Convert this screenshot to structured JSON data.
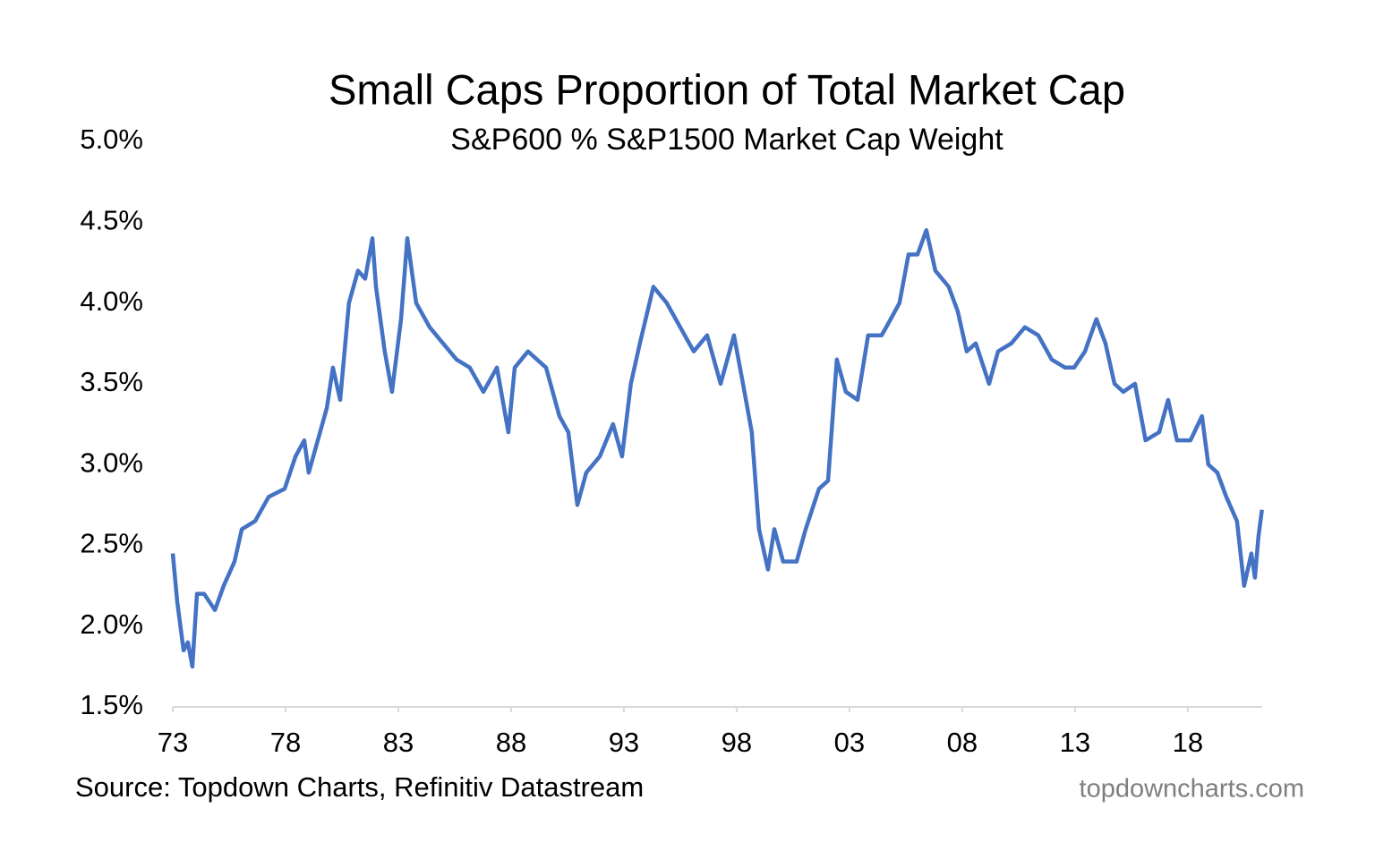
{
  "chart_data": {
    "type": "line",
    "title": "Small Caps Proportion of Total Market Cap",
    "subtitle": "S&P600 % S&P1500 Market Cap Weight",
    "source": "Source: Topdown Charts, Refinitiv Datastream",
    "watermark": "topdowncharts.com",
    "x": [
      1973.0,
      1973.2,
      1973.48,
      1973.67,
      1973.87,
      1974.07,
      1974.39,
      1974.87,
      1975.26,
      1975.74,
      1976.06,
      1976.65,
      1977.25,
      1977.96,
      1978.44,
      1978.83,
      1979.03,
      1979.43,
      1979.83,
      1980.1,
      1980.42,
      1980.81,
      1981.21,
      1981.53,
      1981.85,
      1982.01,
      1982.4,
      1982.72,
      1983.12,
      1983.4,
      1983.79,
      1984.39,
      1984.98,
      1985.58,
      1986.17,
      1986.77,
      1987.37,
      1987.88,
      1988.16,
      1988.75,
      1989.55,
      1990.14,
      1990.54,
      1990.94,
      1991.33,
      1991.93,
      1992.52,
      1992.92,
      1993.31,
      1993.71,
      1994.31,
      1994.9,
      1995.5,
      1996.1,
      1996.69,
      1997.29,
      1997.88,
      1998.28,
      1998.67,
      1998.99,
      1999.39,
      1999.67,
      2000.06,
      2000.66,
      2001.06,
      2001.65,
      2002.05,
      2002.44,
      2002.84,
      2003.36,
      2003.83,
      2004.43,
      2004.83,
      2005.22,
      2005.62,
      2006.02,
      2006.41,
      2006.81,
      2007.4,
      2007.8,
      2008.2,
      2008.6,
      2009.19,
      2009.59,
      2010.18,
      2010.78,
      2011.37,
      2011.97,
      2012.56,
      2012.96,
      2013.44,
      2013.95,
      2014.35,
      2014.75,
      2015.14,
      2015.66,
      2016.13,
      2016.73,
      2017.13,
      2017.52,
      2018.12,
      2018.63,
      2018.91,
      2019.31,
      2019.71,
      2020.18,
      2020.5,
      2020.82,
      2020.98,
      2021.13,
      2021.29
    ],
    "series": [
      {
        "name": "S&P600 % S&P1500",
        "color": "#4472c4",
        "values": [
          2.45,
          2.15,
          1.85,
          1.9,
          1.75,
          2.2,
          2.2,
          2.1,
          2.25,
          2.4,
          2.6,
          2.65,
          2.8,
          2.85,
          3.05,
          3.15,
          2.95,
          3.15,
          3.35,
          3.6,
          3.4,
          4.0,
          4.2,
          4.15,
          4.4,
          4.1,
          3.7,
          3.45,
          3.9,
          4.4,
          4.0,
          3.85,
          3.75,
          3.65,
          3.6,
          3.45,
          3.6,
          3.2,
          3.6,
          3.7,
          3.6,
          3.3,
          3.2,
          2.75,
          2.95,
          3.05,
          3.25,
          3.05,
          3.5,
          3.75,
          4.1,
          4.0,
          3.85,
          3.7,
          3.8,
          3.5,
          3.8,
          3.5,
          3.2,
          2.6,
          2.35,
          2.6,
          2.4,
          2.4,
          2.6,
          2.85,
          2.9,
          3.65,
          3.45,
          3.4,
          3.8,
          3.8,
          3.9,
          4.0,
          4.3,
          4.3,
          4.45,
          4.2,
          4.1,
          3.95,
          3.7,
          3.75,
          3.5,
          3.7,
          3.75,
          3.85,
          3.8,
          3.65,
          3.6,
          3.6,
          3.7,
          3.9,
          3.75,
          3.5,
          3.45,
          3.5,
          3.15,
          3.2,
          3.4,
          3.15,
          3.15,
          3.3,
          3.0,
          2.95,
          2.8,
          2.65,
          2.25,
          2.45,
          2.3,
          2.55,
          2.72
        ]
      }
    ],
    "xlim": [
      1973,
      2021.3
    ],
    "xticks": [
      {
        "value": 1973,
        "label": "73"
      },
      {
        "value": 1978,
        "label": "78"
      },
      {
        "value": 1983,
        "label": "83"
      },
      {
        "value": 1988,
        "label": "88"
      },
      {
        "value": 1993,
        "label": "93"
      },
      {
        "value": 1998,
        "label": "98"
      },
      {
        "value": 2003,
        "label": "03"
      },
      {
        "value": 2008,
        "label": "08"
      },
      {
        "value": 2013,
        "label": "13"
      },
      {
        "value": 2018,
        "label": "18"
      }
    ],
    "ylim": [
      1.5,
      5.0
    ],
    "yticks": [
      {
        "value": 1.5,
        "label": "1.5%"
      },
      {
        "value": 2.0,
        "label": "2.0%"
      },
      {
        "value": 2.5,
        "label": "2.5%"
      },
      {
        "value": 3.0,
        "label": "3.0%"
      },
      {
        "value": 3.5,
        "label": "3.5%"
      },
      {
        "value": 4.0,
        "label": "4.0%"
      },
      {
        "value": 4.5,
        "label": "4.5%"
      },
      {
        "value": 5.0,
        "label": "5.0%"
      }
    ],
    "grid": false
  }
}
